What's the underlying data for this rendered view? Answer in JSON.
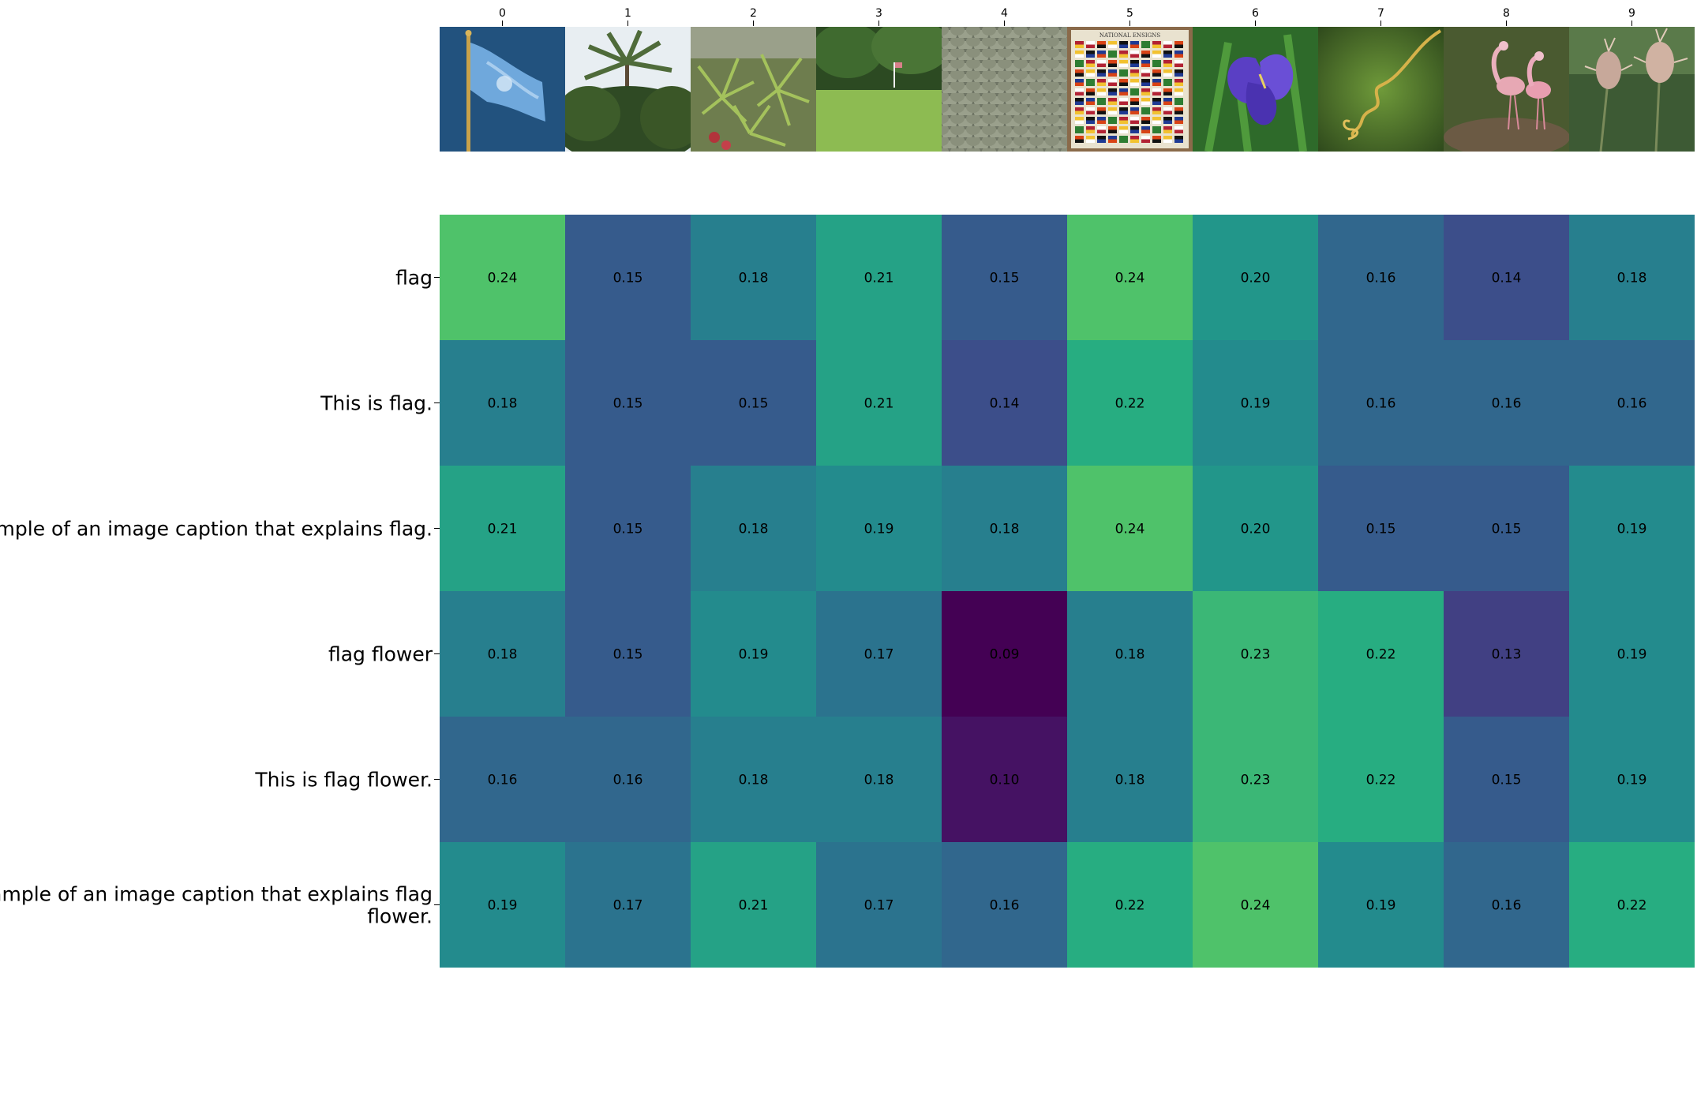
{
  "chart_data": {
    "type": "heatmap",
    "title": "",
    "xlabel": "",
    "ylabel": "",
    "colormap": "viridis",
    "value_range": [
      0.09,
      0.24
    ],
    "columns": [
      "0",
      "1",
      "2",
      "3",
      "4",
      "5",
      "6",
      "7",
      "8",
      "9"
    ],
    "rows": [
      "flag",
      "This is flag.",
      "Example of an image caption that explains flag.",
      "flag flower",
      "This is flag flower.",
      "Example of an image caption that explains flag flower."
    ],
    "values": [
      [
        0.24,
        0.15,
        0.18,
        0.21,
        0.15,
        0.24,
        0.2,
        0.16,
        0.14,
        0.18
      ],
      [
        0.18,
        0.15,
        0.15,
        0.21,
        0.14,
        0.22,
        0.19,
        0.16,
        0.16,
        0.16
      ],
      [
        0.21,
        0.15,
        0.18,
        0.19,
        0.18,
        0.24,
        0.2,
        0.15,
        0.15,
        0.19
      ],
      [
        0.18,
        0.15,
        0.19,
        0.17,
        0.09,
        0.18,
        0.23,
        0.22,
        0.13,
        0.19
      ],
      [
        0.16,
        0.16,
        0.18,
        0.18,
        0.1,
        0.18,
        0.23,
        0.22,
        0.15,
        0.19
      ],
      [
        0.19,
        0.17,
        0.21,
        0.17,
        0.16,
        0.22,
        0.24,
        0.19,
        0.16,
        0.22
      ]
    ],
    "column_images": [
      "blue flag on flagpole",
      "palm trees",
      "spiky green plants",
      "golf green with flag",
      "shingled rooftop",
      "national ensigns chart of flags",
      "purple iris flower",
      "curled tendril",
      "flamingos",
      "teasel seed heads"
    ],
    "poster_title": "NATIONAL ENSIGNS"
  }
}
